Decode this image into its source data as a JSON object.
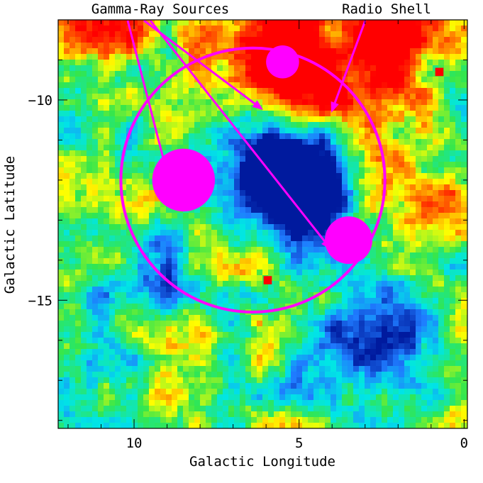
{
  "chart_data": {
    "type": "heatmap",
    "title": "",
    "xlabel": "Galactic Longitude",
    "ylabel": "Galactic Latitude",
    "x_direction": "decreasing",
    "xlim": [
      12.3,
      -0.1
    ],
    "ylim": [
      -8.0,
      -18.2
    ],
    "x_ticks": [
      10,
      5,
      0
    ],
    "x_tick_labels": [
      "10",
      "5",
      "0"
    ],
    "y_ticks": [
      -10,
      -15
    ],
    "y_tick_labels": [
      "−10",
      "−15"
    ],
    "colormap": "blue-cyan-green-yellow-red",
    "colormap_stops": [
      "#001a9e",
      "#1f7bff",
      "#00e6e6",
      "#33e64d",
      "#ffff00",
      "#ff6600",
      "#ff0000"
    ],
    "overlays": {
      "color": "#ff00ff",
      "radio_shell": {
        "label": "Radio Shell",
        "center": [
          6.4,
          -12.0
        ],
        "radius_deg": 4.0
      },
      "gamma_ray_sources": [
        {
          "center": [
            8.5,
            -12.0
          ],
          "radius_deg": 0.95
        },
        {
          "center": [
            5.5,
            -9.05
          ],
          "radius_deg": 0.5
        },
        {
          "center": [
            3.5,
            -13.5
          ],
          "radius_deg": 0.72
        }
      ],
      "gamma_label": "Gamma-Ray Sources"
    },
    "hotspots": [
      {
        "center": [
          5.45,
          -8.5
        ],
        "sigma": 1.1,
        "value": 0.55
      },
      {
        "center": [
          5.8,
          -9.6
        ],
        "sigma": 0.9,
        "value": 0.35
      },
      {
        "center": [
          4.2,
          -9.4
        ],
        "sigma": 1.2,
        "value": 0.45
      },
      {
        "center": [
          3.0,
          -10.0
        ],
        "sigma": 0.8,
        "value": 0.25
      },
      {
        "center": [
          11.0,
          -8.2
        ],
        "sigma": 0.8,
        "value": 0.55
      },
      {
        "center": [
          2.0,
          -8.3
        ],
        "sigma": 0.9,
        "value": 0.55
      },
      {
        "center": [
          8.5,
          -9.0
        ],
        "sigma": 1.4,
        "value": 0.12
      },
      {
        "center": [
          1.2,
          -12.5
        ],
        "sigma": 1.2,
        "value": 0.14
      },
      {
        "center": [
          6.7,
          -14.0
        ],
        "sigma": 1.5,
        "value": 0.1
      },
      {
        "center": [
          5.7,
          -11.3
        ],
        "sigma": 1.1,
        "value": -0.6
      },
      {
        "center": [
          5.2,
          -12.0
        ],
        "sigma": 1.0,
        "value": -0.6
      },
      {
        "center": [
          4.7,
          -12.6
        ],
        "sigma": 0.8,
        "value": -0.5
      },
      {
        "center": [
          9.0,
          -14.2
        ],
        "sigma": 0.7,
        "value": -0.35
      },
      {
        "center": [
          3.5,
          -16.0
        ],
        "sigma": 1.3,
        "value": -0.3
      },
      {
        "center": [
          1.5,
          -15.5
        ],
        "sigma": 1.0,
        "value": -0.25
      },
      {
        "center": [
          11.8,
          -16.5
        ],
        "sigma": 1.2,
        "value": -0.25
      },
      {
        "center": [
          4.0,
          -9.1
        ],
        "sigma": 0.8,
        "value": -0.3
      },
      {
        "center": [
          11.0,
          -10.5
        ],
        "sigma": 0.9,
        "value": -0.2
      }
    ],
    "point_sources": [
      {
        "center": [
          5.1,
          -8.7
        ],
        "size_deg": 0.25
      },
      {
        "center": [
          0.75,
          -9.3
        ],
        "size_deg": 0.25
      },
      {
        "center": [
          5.95,
          -14.5
        ],
        "size_deg": 0.25
      }
    ]
  }
}
